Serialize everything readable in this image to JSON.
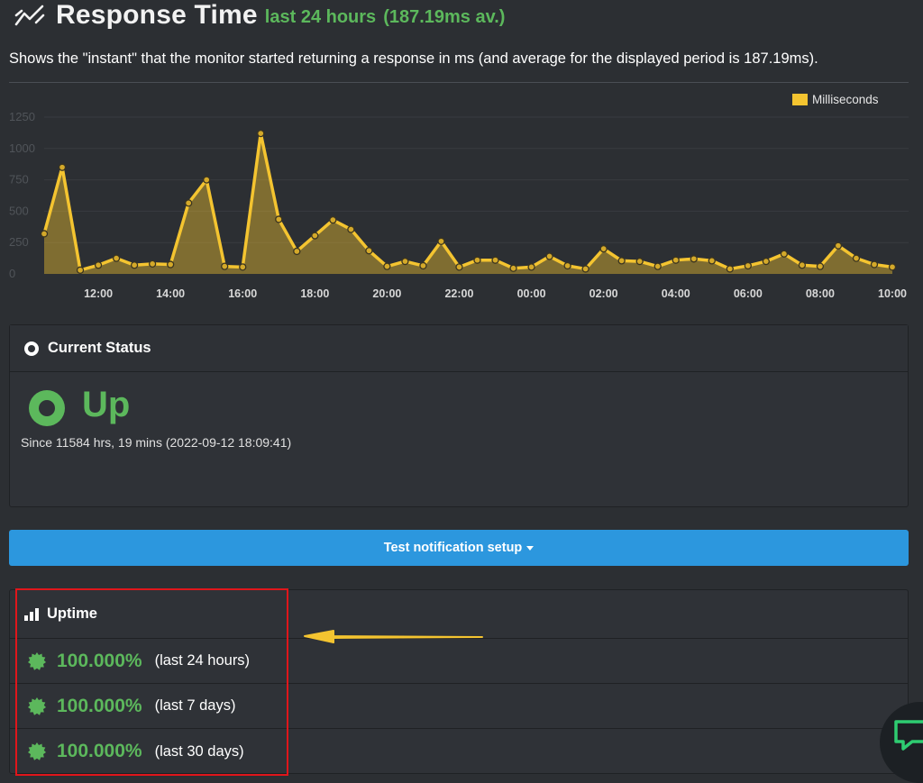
{
  "header": {
    "title": "Response Time",
    "period": "last 24 hours",
    "average": "(187.19ms av.)",
    "description": "Shows the \"instant\" that the monitor started returning a response in ms (and average for the displayed period is 187.19ms)."
  },
  "chart_data": {
    "type": "area",
    "legend": "Milliseconds",
    "ylim": [
      0,
      1250
    ],
    "y_ticks": [
      "0",
      "250",
      "500",
      "750",
      "1000",
      "1250"
    ],
    "x_ticks": [
      "12:00",
      "14:00",
      "16:00",
      "18:00",
      "20:00",
      "22:00",
      "00:00",
      "02:00",
      "04:00",
      "06:00",
      "08:00",
      "10:00"
    ],
    "x_range_hours": [
      10.5,
      34.0
    ],
    "series": [
      {
        "name": "Milliseconds",
        "color": "#f4c430",
        "x": [
          10.5,
          11.0,
          11.5,
          12.0,
          12.5,
          13.0,
          13.5,
          14.0,
          14.5,
          15.0,
          15.5,
          16.0,
          16.5,
          17.0,
          17.5,
          18.0,
          18.5,
          19.0,
          19.5,
          20.0,
          20.5,
          21.0,
          21.5,
          22.0,
          22.5,
          23.0,
          23.5,
          24.0,
          24.5,
          25.0,
          25.5,
          26.0,
          26.5,
          27.0,
          27.5,
          28.0,
          28.5,
          29.0,
          29.5,
          30.0,
          30.5,
          31.0,
          31.5,
          32.0,
          32.5,
          33.0,
          33.5,
          34.0
        ],
        "values": [
          320,
          850,
          30,
          70,
          125,
          70,
          80,
          75,
          565,
          750,
          60,
          55,
          1120,
          435,
          180,
          305,
          430,
          355,
          185,
          60,
          100,
          65,
          260,
          55,
          110,
          110,
          45,
          55,
          140,
          65,
          40,
          200,
          105,
          100,
          60,
          110,
          120,
          105,
          40,
          65,
          100,
          160,
          70,
          60,
          225,
          125,
          75,
          55
        ]
      }
    ]
  },
  "status": {
    "heading": "Current Status",
    "state": "Up",
    "since": "Since 11584 hrs, 19 mins (2022-09-12 18:09:41)"
  },
  "notify": {
    "label": "Test notification setup"
  },
  "uptime": {
    "heading": "Uptime",
    "rows": [
      {
        "percent": "100.000%",
        "span": "(last 24 hours)"
      },
      {
        "percent": "100.000%",
        "span": "(last 7 days)"
      },
      {
        "percent": "100.000%",
        "span": "(last 30 days)"
      }
    ]
  },
  "colors": {
    "accent_green": "#5cb85c",
    "button_blue": "#2c97de",
    "chart_line": "#f4c430",
    "highlight_red": "#e0161b"
  }
}
